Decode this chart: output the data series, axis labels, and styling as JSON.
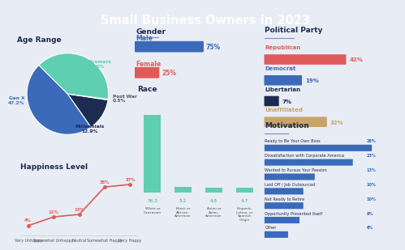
{
  "title": "Small Business Owners in 2023",
  "title_bg": "#1c2b50",
  "title_color": "#ffffff",
  "bg_color": "#e8ecf4",
  "age_labels": [
    "Gen X",
    "Millennials",
    "Post War",
    "Boomers"
  ],
  "age_values": [
    47.2,
    12.9,
    0.3,
    39.6
  ],
  "age_colors": [
    "#3b6aba",
    "#1c2b50",
    "#2a3d6b",
    "#5ecfb0"
  ],
  "age_startangle": 135,
  "gender_labels": [
    "Male",
    "Female"
  ],
  "gender_values": [
    75,
    25
  ],
  "gender_colors": [
    "#3b6aba",
    "#e05a5a"
  ],
  "race_labels": [
    "White or\nCaucasian",
    "Black or\nAfrican-\nAmerican",
    "Asian or\nAsian-\nAmerican",
    "Hispanic,\nLatino, or\nSpanish\nOrigin"
  ],
  "race_values": [
    76.2,
    5.2,
    4.5,
    4.7
  ],
  "race_color": "#5ecfb0",
  "race_label_values": [
    "76.2",
    "5.2",
    "4.5",
    "4.7"
  ],
  "happiness_labels": [
    "Very Unhappy",
    "Somewhat Unhappy",
    "Neutral",
    "Somewhat Happy",
    "Very Happy"
  ],
  "happiness_values": [
    4,
    11,
    13,
    35,
    37
  ],
  "happiness_color": "#e05a5a",
  "political_labels": [
    "Republican",
    "Democrat",
    "Libertarian",
    "Unaffiliated"
  ],
  "political_values": [
    42,
    19,
    7,
    32
  ],
  "political_colors": [
    "#e05a5a",
    "#3b6aba",
    "#1c2b50",
    "#c8a46a"
  ],
  "motivation_labels": [
    "Ready to Be Your Own Boss",
    "Dissatisfaction with Corporate America",
    "Wanted to Pursue Your Passion",
    "Laid Off / Job Outsourced",
    "Not Ready to Retire",
    "Opportunity Presented Itself",
    "Other"
  ],
  "motivation_values": [
    28,
    23,
    13,
    10,
    10,
    9,
    6
  ],
  "motivation_color": "#3b6aba",
  "motivation_pct_labels": [
    "28%",
    "23%",
    "13%",
    "10%",
    "10%",
    "9%",
    "6%"
  ],
  "section_underline_color": "#b0b8d0",
  "text_dark": "#1c2b50",
  "text_mid": "#555555"
}
